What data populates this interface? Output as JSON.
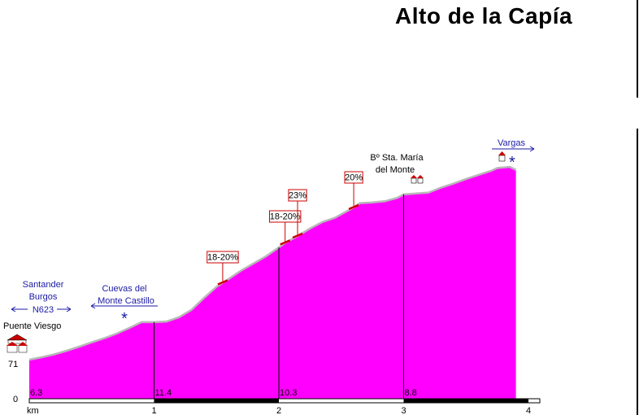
{
  "title": "Alto de la Capía",
  "chart_data": {
    "type": "area",
    "title": "Alto de la Capía",
    "x_unit": "km",
    "xlim": [
      0,
      4
    ],
    "x_ticks": [
      "km",
      "1",
      "2",
      "3",
      "4"
    ],
    "y_tick_labels": [
      "0",
      "71"
    ],
    "fill_color": "#ff00ff",
    "profile": {
      "x": [
        0,
        0.1,
        0.2,
        0.3,
        0.4,
        0.5,
        0.6,
        0.7,
        0.8,
        0.9,
        1.0,
        1.1,
        1.2,
        1.3,
        1.4,
        1.5,
        1.6,
        1.7,
        1.8,
        1.9,
        2.0,
        2.05,
        2.15,
        2.25,
        2.35,
        2.45,
        2.5,
        2.6,
        2.65,
        2.75,
        2.85,
        2.95,
        3.0,
        3.1,
        3.2,
        3.3,
        3.4,
        3.5,
        3.6,
        3.7,
        3.75,
        3.85,
        3.9
      ],
      "y": [
        71,
        79,
        88,
        100,
        113,
        127,
        140,
        155,
        173,
        192,
        192,
        194,
        208,
        232,
        270,
        306,
        332,
        359,
        382,
        405,
        433,
        448,
        470,
        494,
        515,
        529,
        540,
        562,
        576,
        578,
        582,
        593,
        604,
        607,
        610,
        626,
        639,
        654,
        667,
        680,
        689,
        693,
        683
      ]
    },
    "segment_gradients": [
      {
        "label": "6.3",
        "from_km": 0,
        "to_km": 1
      },
      {
        "label": "11.4",
        "from_km": 1,
        "to_km": 2
      },
      {
        "label": "10.3",
        "from_km": 2,
        "to_km": 3
      },
      {
        "label": "8.8",
        "from_km": 3,
        "to_km": 4
      }
    ],
    "steep_sections": [
      {
        "label": "18-20%",
        "km": 1.55
      },
      {
        "label": "18-20%",
        "km": 2.05
      },
      {
        "label": "23%",
        "km": 2.15
      },
      {
        "label": "20%",
        "km": 2.6
      }
    ],
    "annotations": {
      "start_directions": [
        "Santander",
        "Burgos",
        "N623"
      ],
      "start_town": "Puente Viesgo",
      "cave": [
        "Cuevas del",
        "Monte Castillo"
      ],
      "village": [
        "Bº Sta. María",
        "del Monte"
      ],
      "end_direction": "Vargas",
      "viewpoint_symbol": "*"
    }
  }
}
